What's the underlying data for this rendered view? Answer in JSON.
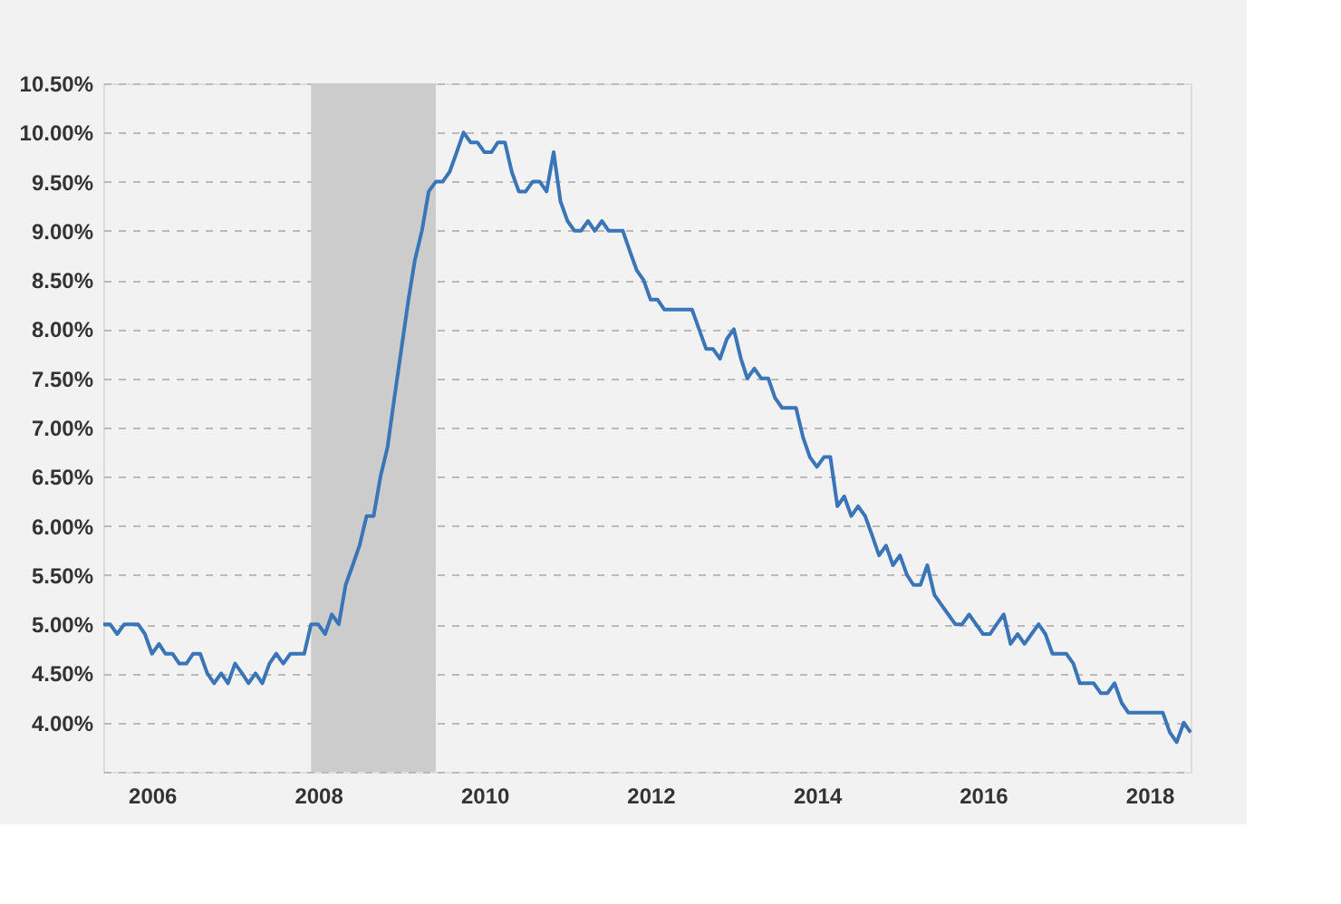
{
  "chart_data": {
    "type": "line",
    "x": [
      "2005-06",
      "2005-07",
      "2005-08",
      "2005-09",
      "2005-10",
      "2005-11",
      "2005-12",
      "2006-01",
      "2006-02",
      "2006-03",
      "2006-04",
      "2006-05",
      "2006-06",
      "2006-07",
      "2006-08",
      "2006-09",
      "2006-10",
      "2006-11",
      "2006-12",
      "2007-01",
      "2007-02",
      "2007-03",
      "2007-04",
      "2007-05",
      "2007-06",
      "2007-07",
      "2007-08",
      "2007-09",
      "2007-10",
      "2007-11",
      "2007-12",
      "2008-01",
      "2008-02",
      "2008-03",
      "2008-04",
      "2008-05",
      "2008-06",
      "2008-07",
      "2008-08",
      "2008-09",
      "2008-10",
      "2008-11",
      "2008-12",
      "2009-01",
      "2009-02",
      "2009-03",
      "2009-04",
      "2009-05",
      "2009-06",
      "2009-07",
      "2009-08",
      "2009-09",
      "2009-10",
      "2009-11",
      "2009-12",
      "2010-01",
      "2010-02",
      "2010-03",
      "2010-04",
      "2010-05",
      "2010-06",
      "2010-07",
      "2010-08",
      "2010-09",
      "2010-10",
      "2010-11",
      "2010-12",
      "2011-01",
      "2011-02",
      "2011-03",
      "2011-04",
      "2011-05",
      "2011-06",
      "2011-07",
      "2011-08",
      "2011-09",
      "2011-10",
      "2011-11",
      "2011-12",
      "2012-01",
      "2012-02",
      "2012-03",
      "2012-04",
      "2012-05",
      "2012-06",
      "2012-07",
      "2012-08",
      "2012-09",
      "2012-10",
      "2012-11",
      "2012-12",
      "2013-01",
      "2013-02",
      "2013-03",
      "2013-04",
      "2013-05",
      "2013-06",
      "2013-07",
      "2013-08",
      "2013-09",
      "2013-10",
      "2013-11",
      "2013-12",
      "2014-01",
      "2014-02",
      "2014-03",
      "2014-04",
      "2014-05",
      "2014-06",
      "2014-07",
      "2014-08",
      "2014-09",
      "2014-10",
      "2014-11",
      "2014-12",
      "2015-01",
      "2015-02",
      "2015-03",
      "2015-04",
      "2015-05",
      "2015-06",
      "2015-07",
      "2015-08",
      "2015-09",
      "2015-10",
      "2015-11",
      "2015-12",
      "2016-01",
      "2016-02",
      "2016-03",
      "2016-04",
      "2016-05",
      "2016-06",
      "2016-07",
      "2016-08",
      "2016-09",
      "2016-10",
      "2016-11",
      "2016-12",
      "2017-01",
      "2017-02",
      "2017-03",
      "2017-04",
      "2017-05",
      "2017-06",
      "2017-07",
      "2017-08",
      "2017-09",
      "2017-10",
      "2017-11",
      "2017-12",
      "2018-01",
      "2018-02",
      "2018-03",
      "2018-04",
      "2018-05",
      "2018-06",
      "2018-07"
    ],
    "series": [
      {
        "color": "#3a75b8",
        "values": [
          5.0,
          5.0,
          4.9,
          5.0,
          5.0,
          5.0,
          4.9,
          4.7,
          4.8,
          4.7,
          4.7,
          4.6,
          4.6,
          4.7,
          4.7,
          4.5,
          4.4,
          4.5,
          4.4,
          4.6,
          4.5,
          4.4,
          4.5,
          4.4,
          4.6,
          4.7,
          4.6,
          4.7,
          4.7,
          4.7,
          5.0,
          5.0,
          4.9,
          5.1,
          5.0,
          5.4,
          5.6,
          5.8,
          6.1,
          6.1,
          6.5,
          6.8,
          7.3,
          7.8,
          8.3,
          8.7,
          9.0,
          9.4,
          9.5,
          9.5,
          9.6,
          9.8,
          10.0,
          9.9,
          9.9,
          9.8,
          9.8,
          9.9,
          9.9,
          9.6,
          9.4,
          9.4,
          9.5,
          9.5,
          9.4,
          9.8,
          9.3,
          9.1,
          9.0,
          9.0,
          9.1,
          9.0,
          9.1,
          9.0,
          9.0,
          9.0,
          8.8,
          8.6,
          8.5,
          8.3,
          8.3,
          8.2,
          8.2,
          8.2,
          8.2,
          8.2,
          8.0,
          7.8,
          7.8,
          7.7,
          7.9,
          8.0,
          7.7,
          7.5,
          7.6,
          7.5,
          7.5,
          7.3,
          7.2,
          7.2,
          7.2,
          6.9,
          6.7,
          6.6,
          6.7,
          6.7,
          6.2,
          6.3,
          6.1,
          6.2,
          6.1,
          5.9,
          5.7,
          5.8,
          5.6,
          5.7,
          5.5,
          5.4,
          5.4,
          5.6,
          5.3,
          5.2,
          5.1,
          5.0,
          5.0,
          5.1,
          5.0,
          4.9,
          4.9,
          5.0,
          5.1,
          4.8,
          4.9,
          4.8,
          4.9,
          5.0,
          4.9,
          4.7,
          4.7,
          4.7,
          4.6,
          4.4,
          4.4,
          4.4,
          4.3,
          4.3,
          4.4,
          4.2,
          4.1,
          4.1,
          4.1,
          4.1,
          4.1,
          4.1,
          3.9,
          3.8,
          4.0,
          3.9
        ]
      }
    ],
    "xlim": [
      "2005-06",
      "2018-07"
    ],
    "xticks": [
      "2006",
      "2008",
      "2010",
      "2012",
      "2014",
      "2016",
      "2018"
    ],
    "ylim": [
      3.5,
      10.5
    ],
    "yticks": [
      {
        "value": 3.5,
        "label": null
      },
      {
        "value": 4.0,
        "label": "4.00%"
      },
      {
        "value": 4.5,
        "label": "4.50%"
      },
      {
        "value": 5.0,
        "label": "5.00%"
      },
      {
        "value": 5.5,
        "label": "5.50%"
      },
      {
        "value": 6.0,
        "label": "6.00%"
      },
      {
        "value": 6.5,
        "label": "6.50%"
      },
      {
        "value": 7.0,
        "label": "7.00%"
      },
      {
        "value": 7.5,
        "label": "7.50%"
      },
      {
        "value": 8.0,
        "label": "8.00%"
      },
      {
        "value": 8.5,
        "label": "8.50%"
      },
      {
        "value": 9.0,
        "label": "9.00%"
      },
      {
        "value": 9.5,
        "label": "9.50%"
      },
      {
        "value": 10.0,
        "label": "10.00%"
      },
      {
        "value": 10.5,
        "label": "10.50%"
      }
    ],
    "bands": [
      {
        "axis": "x",
        "from": "2007-12",
        "to": "2009-06",
        "color": "#cccccc"
      }
    ],
    "grid": "y",
    "line_style": "solid",
    "marker": "none"
  }
}
